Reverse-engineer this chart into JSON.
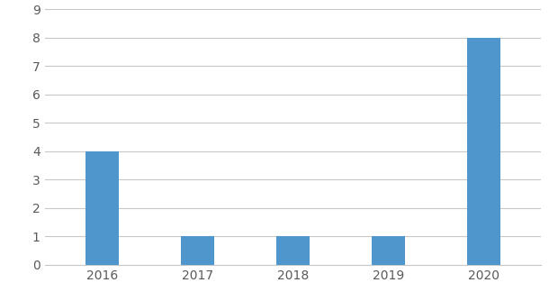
{
  "categories": [
    "2016",
    "2017",
    "2018",
    "2019",
    "2020"
  ],
  "values": [
    4,
    1,
    1,
    1,
    8
  ],
  "bar_color": "#4f96cc",
  "ylim": [
    0,
    9
  ],
  "yticks": [
    0,
    1,
    2,
    3,
    4,
    5,
    6,
    7,
    8,
    9
  ],
  "background_color": "#ffffff",
  "grid_color": "#c8c8c8",
  "bar_width": 0.35,
  "tick_label_fontsize": 10,
  "tick_label_color": "#595959",
  "axis_line_color": "#c8c8c8"
}
